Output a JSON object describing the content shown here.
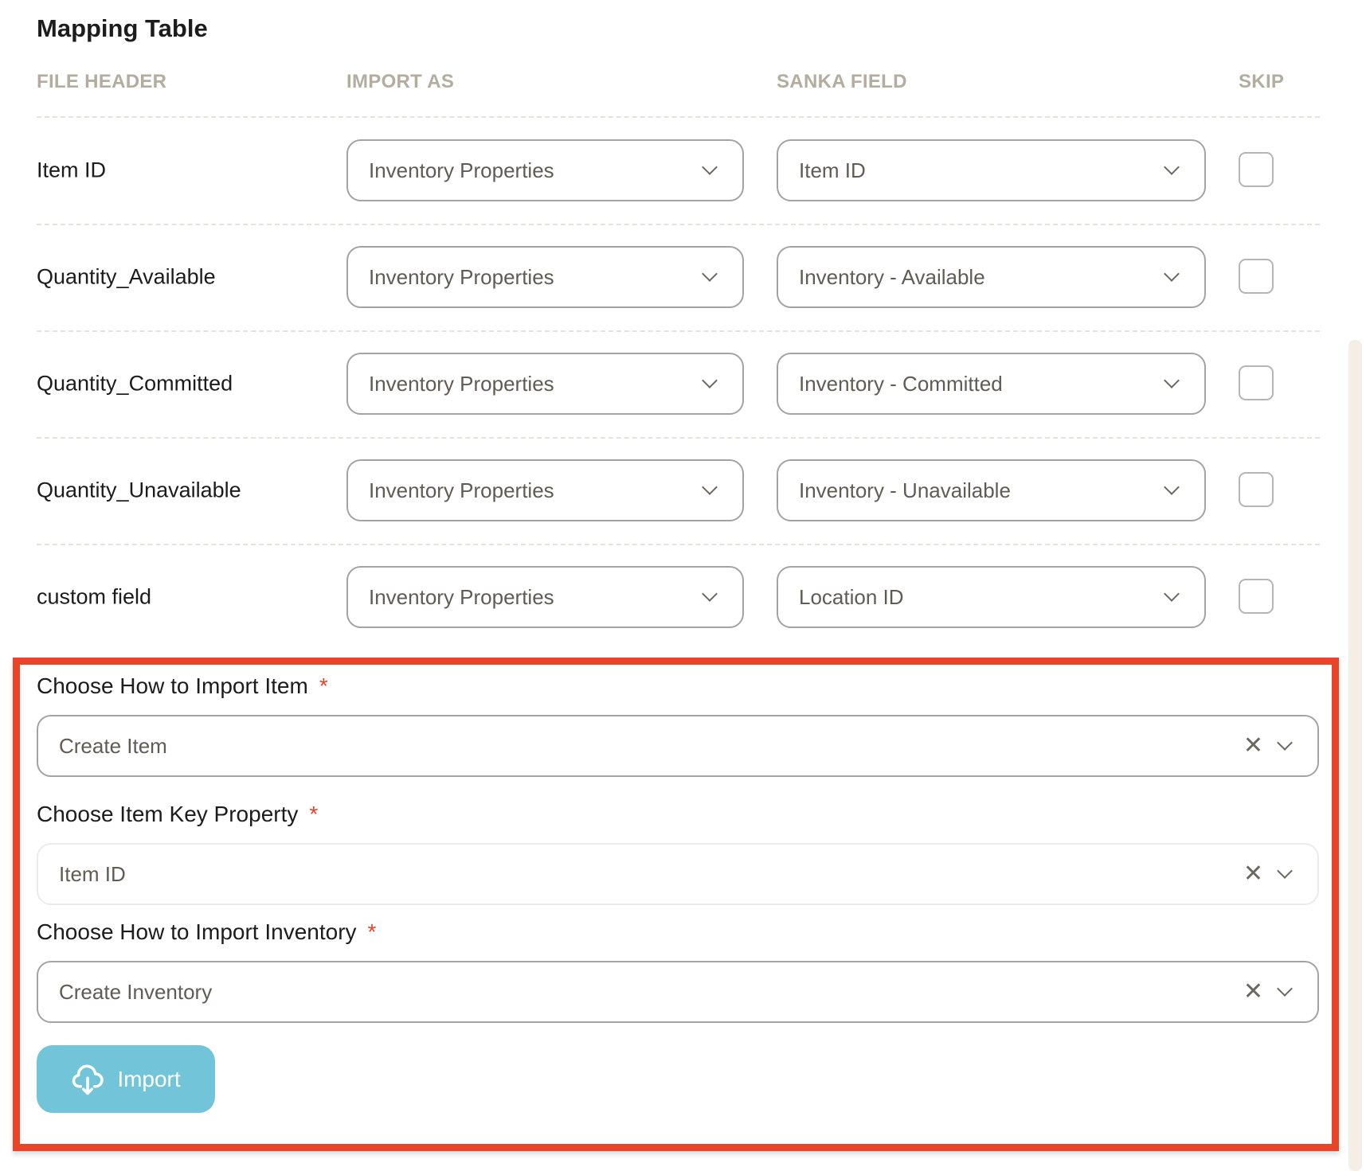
{
  "title": "Mapping Table",
  "headers": {
    "file_header": "FILE HEADER",
    "import_as": "IMPORT AS",
    "sanka_field": "SANKA FIELD",
    "skip": "SKIP"
  },
  "rows": [
    {
      "file_header": "Item ID",
      "import_as": "Inventory Properties",
      "sanka_field": "Item ID",
      "skip": false
    },
    {
      "file_header": "Quantity_Available",
      "import_as": "Inventory Properties",
      "sanka_field": "Inventory - Available",
      "skip": false
    },
    {
      "file_header": "Quantity_Committed",
      "import_as": "Inventory Properties",
      "sanka_field": "Inventory - Committed",
      "skip": false
    },
    {
      "file_header": "Quantity_Unavailable",
      "import_as": "Inventory Properties",
      "sanka_field": "Inventory - Unavailable",
      "skip": false
    },
    {
      "file_header": "custom field",
      "import_as": "Inventory Properties",
      "sanka_field": "Location ID",
      "skip": false
    }
  ],
  "options": {
    "import_item": {
      "label": "Choose How to Import Item",
      "required": "*",
      "value": "Create Item"
    },
    "key_property": {
      "label": "Choose Item Key Property",
      "required": "*",
      "value": "Item ID"
    },
    "import_inventory": {
      "label": "Choose How to Import Inventory",
      "required": "*",
      "value": "Create Inventory"
    }
  },
  "import_button": {
    "label": "Import",
    "icon": "cloud-upload-icon",
    "color": "#72c5d8"
  },
  "highlight_color": "#e84427",
  "clear_glyph": "✕"
}
